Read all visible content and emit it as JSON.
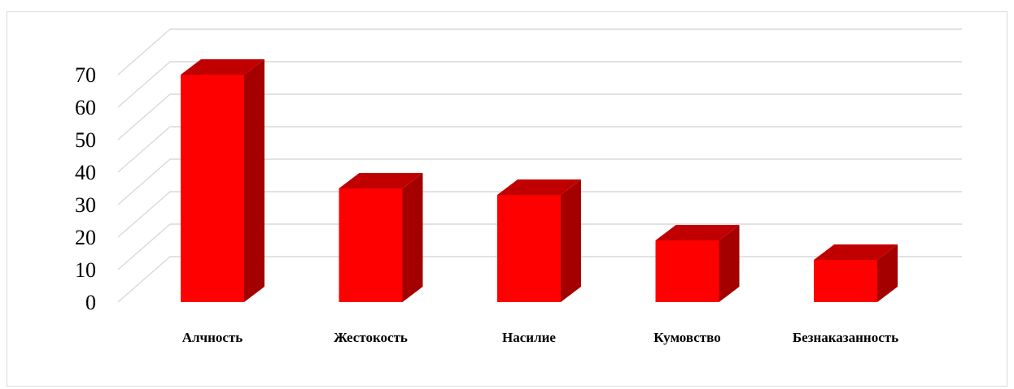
{
  "chart_data": {
    "type": "bar",
    "style": "3d-column",
    "title": "",
    "xlabel": "",
    "ylabel": "",
    "categories": [
      "Алчность",
      "Жестокость",
      "Насилие",
      "Кумовство",
      "Безнаказанность"
    ],
    "values": [
      70,
      35,
      33,
      19,
      13
    ],
    "ylim": [
      0,
      70
    ],
    "yticks": [
      0,
      10,
      20,
      30,
      40,
      50,
      60,
      70
    ],
    "grid": true,
    "legend": "none",
    "colors": {
      "bar_front": "#ff0000",
      "bar_top": "#c00000",
      "bar_side": "#a50000",
      "grid": "#d9d9d9"
    }
  }
}
